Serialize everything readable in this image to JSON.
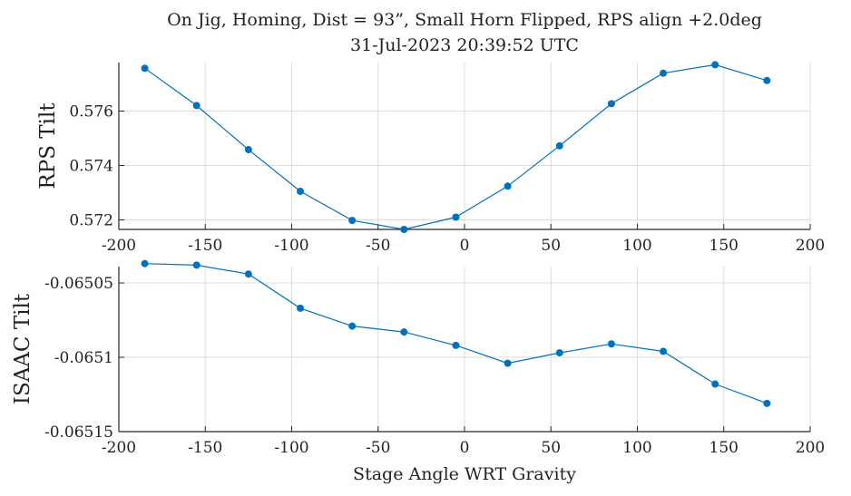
{
  "chart_data": {
    "title": "On Jig, Homing, Dist = 93”, Small Horn Flipped, RPS align +2.0deg",
    "subtitle": "31-Jul-2023 20:39:52 UTC",
    "color": "#0072BD",
    "grid": true,
    "subplots": [
      {
        "type": "line",
        "ylabel": "RPS Tilt",
        "xlabel": "",
        "xlim": [
          -200,
          200
        ],
        "ylim": [
          0.57165,
          0.57778
        ],
        "xticks": [
          "-200",
          "-150",
          "-100",
          "-50",
          "0",
          "50",
          "100",
          "150",
          "200"
        ],
        "yticks": [
          "0.572",
          "0.574",
          "0.576"
        ],
        "x": [
          -185,
          -155,
          -125,
          -95,
          -65,
          -35,
          -5,
          25,
          55,
          85,
          115,
          145,
          175
        ],
        "y": [
          0.57757,
          0.5762,
          0.57458,
          0.57305,
          0.57198,
          0.57165,
          0.5721,
          0.57324,
          0.57472,
          0.57627,
          0.57739,
          0.5777,
          0.57712
        ]
      },
      {
        "type": "line",
        "ylabel": "ISAAC Tilt",
        "xlabel": "Stage Angle WRT Gravity",
        "xlim": [
          -200,
          200
        ],
        "ylim": [
          -0.06515,
          -0.065039
        ],
        "xticks": [
          "-200",
          "-150",
          "-100",
          "-50",
          "0",
          "50",
          "100",
          "150",
          "200"
        ],
        "yticks": [
          "-0.06505",
          "-0.0651",
          "-0.06515"
        ],
        "ytick_values": [
          -0.06505,
          -0.0651,
          -0.06515
        ],
        "x": [
          -185,
          -155,
          -125,
          -95,
          -65,
          -35,
          -5,
          25,
          55,
          85,
          115,
          145,
          175
        ],
        "y": [
          -0.065037,
          -0.065038,
          -0.065044,
          -0.065067,
          -0.065079,
          -0.065083,
          -0.065092,
          -0.065104,
          -0.065097,
          -0.065091,
          -0.065096,
          -0.065118,
          -0.065131
        ]
      }
    ]
  }
}
